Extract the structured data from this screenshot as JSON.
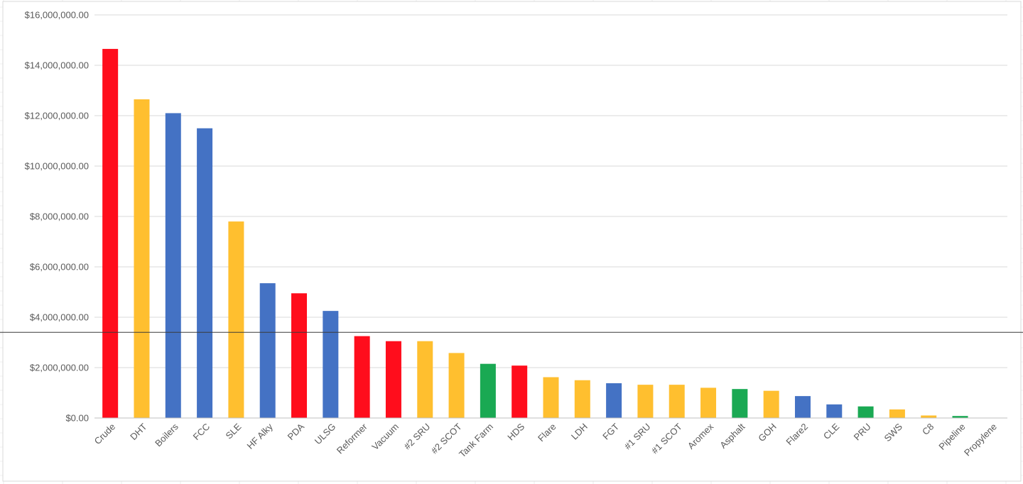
{
  "chart_data": {
    "type": "bar",
    "title": "",
    "xlabel": "",
    "ylabel": "",
    "ylim": [
      0,
      16000000
    ],
    "ytick_values": [
      0,
      2000000,
      4000000,
      6000000,
      8000000,
      10000000,
      12000000,
      14000000,
      16000000
    ],
    "ytick_labels": [
      "$0.00",
      "$2,000,000.00",
      "$4,000,000.00",
      "$6,000,000.00",
      "$8,000,000.00",
      "$10,000,000.00",
      "$12,000,000.00",
      "$14,000,000.00",
      "$16,000,000.00"
    ],
    "grid": true,
    "legend": "none",
    "categories": [
      "Crude",
      "DHT",
      "Boilers",
      "FCC",
      "SLE",
      "HF Alky",
      "PDA",
      "ULSG",
      "Reformer",
      "Vacuum",
      "#2 SRU",
      "#2 SCOT",
      "Tank Farm",
      "HDS",
      "Flare",
      "LDH",
      "FGT",
      "#1 SRU",
      "#1 SCOT",
      "Aromex",
      "Asphalt",
      "GOH",
      "Flare2",
      "CLE",
      "PRU",
      "SWS",
      "C8",
      "Pipeline",
      "Propylene"
    ],
    "values": [
      14650000,
      12650000,
      12100000,
      11500000,
      7800000,
      5350000,
      4950000,
      4250000,
      3250000,
      3050000,
      3050000,
      2580000,
      2150000,
      2080000,
      1620000,
      1500000,
      1380000,
      1320000,
      1320000,
      1200000,
      1150000,
      1080000,
      870000,
      540000,
      460000,
      340000,
      100000,
      80000,
      10000
    ],
    "bar_colors": [
      "#ff0d1c",
      "#ffbf2f",
      "#4472c4",
      "#4472c4",
      "#ffbf2f",
      "#4472c4",
      "#ff0d1c",
      "#4472c4",
      "#ff0d1c",
      "#ff0d1c",
      "#ffbf2f",
      "#ffbf2f",
      "#1aa953",
      "#ff0d1c",
      "#ffbf2f",
      "#ffbf2f",
      "#4472c4",
      "#ffbf2f",
      "#ffbf2f",
      "#ffbf2f",
      "#1aa953",
      "#ffbf2f",
      "#4472c4",
      "#4472c4",
      "#1aa953",
      "#ffbf2f",
      "#ffbf2f",
      "#1aa953",
      "#ffbf2f"
    ],
    "reference_line": 3400000
  }
}
